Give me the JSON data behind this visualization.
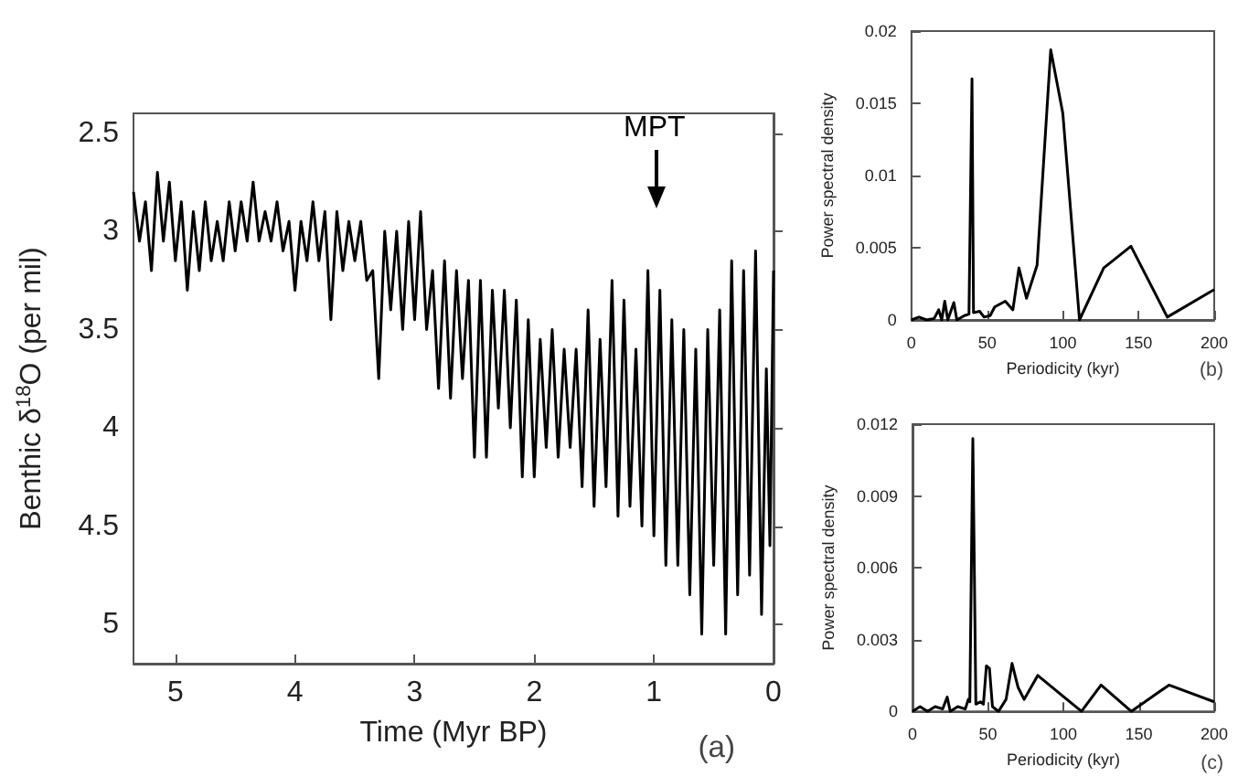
{
  "chart_data": [
    {
      "type": "line",
      "xlabel": "Time (Myr BP)",
      "ylabel": "Benthic δ$^{18}$O (per mil)",
      "xlim": [
        5.35,
        0
      ],
      "xticks": [
        5,
        4,
        3,
        2,
        1,
        0
      ],
      "ylim": [
        5.2,
        2.4
      ],
      "yticks": [
        2.5,
        3,
        3.5,
        4,
        4.5,
        5
      ],
      "annotations": [
        "MPT",
        "(a)"
      ],
      "series": [
        {
          "color": "#000000",
          "x": [
            5.35,
            5.3,
            5.25,
            5.2,
            5.15,
            5.1,
            5.05,
            5.0,
            4.95,
            4.9,
            4.85,
            4.8,
            4.75,
            4.7,
            4.65,
            4.6,
            4.55,
            4.5,
            4.45,
            4.4,
            4.35,
            4.3,
            4.25,
            4.2,
            4.15,
            4.1,
            4.05,
            4.0,
            3.95,
            3.9,
            3.85,
            3.8,
            3.75,
            3.7,
            3.65,
            3.6,
            3.55,
            3.5,
            3.45,
            3.4,
            3.35,
            3.3,
            3.25,
            3.2,
            3.15,
            3.1,
            3.05,
            3.0,
            2.95,
            2.9,
            2.85,
            2.8,
            2.75,
            2.7,
            2.65,
            2.6,
            2.55,
            2.5,
            2.45,
            2.4,
            2.35,
            2.3,
            2.25,
            2.2,
            2.15,
            2.1,
            2.05,
            2.0,
            1.95,
            1.9,
            1.85,
            1.8,
            1.75,
            1.7,
            1.65,
            1.6,
            1.55,
            1.5,
            1.45,
            1.4,
            1.35,
            1.3,
            1.25,
            1.2,
            1.15,
            1.1,
            1.05,
            1.0,
            0.95,
            0.9,
            0.85,
            0.8,
            0.75,
            0.7,
            0.65,
            0.6,
            0.55,
            0.5,
            0.45,
            0.4,
            0.35,
            0.3,
            0.25,
            0.2,
            0.15,
            0.1,
            0.06,
            0.03,
            0.0
          ],
          "values": [
            2.8,
            3.05,
            2.85,
            3.2,
            2.7,
            3.05,
            2.75,
            3.15,
            2.85,
            3.3,
            2.9,
            3.2,
            2.85,
            3.15,
            2.95,
            3.15,
            2.85,
            3.1,
            2.85,
            3.05,
            2.75,
            3.05,
            2.9,
            3.05,
            2.85,
            3.1,
            2.95,
            3.3,
            2.95,
            3.15,
            2.85,
            3.15,
            2.9,
            3.45,
            2.9,
            3.2,
            2.95,
            3.15,
            2.95,
            3.25,
            3.2,
            3.75,
            3.0,
            3.4,
            3.0,
            3.5,
            2.95,
            3.45,
            2.9,
            3.5,
            3.2,
            3.8,
            3.15,
            3.85,
            3.2,
            3.75,
            3.25,
            4.15,
            3.25,
            4.15,
            3.3,
            3.9,
            3.3,
            4.0,
            3.35,
            4.25,
            3.45,
            4.25,
            3.55,
            4.1,
            3.5,
            4.15,
            3.6,
            4.1,
            3.6,
            4.3,
            3.4,
            4.4,
            3.55,
            4.3,
            3.25,
            4.45,
            3.35,
            4.4,
            3.6,
            4.5,
            3.2,
            4.55,
            3.3,
            4.7,
            3.45,
            4.7,
            3.5,
            4.85,
            3.6,
            5.05,
            3.5,
            4.7,
            3.4,
            5.05,
            3.15,
            4.85,
            3.2,
            4.75,
            3.1,
            4.95,
            3.7,
            4.6,
            3.2
          ]
        }
      ]
    },
    {
      "type": "line",
      "xlabel": "Periodicity (kyr)",
      "ylabel": "Power spectral density",
      "xlim": [
        0,
        200
      ],
      "xticks": [
        0,
        50,
        100,
        150,
        200
      ],
      "ylim": [
        0,
        0.02
      ],
      "yticks": [
        0,
        0.005,
        0.01,
        0.015,
        0.02
      ],
      "annotations": [
        "(b)"
      ],
      "series": [
        {
          "color": "#000000",
          "x": [
            0,
            5,
            10,
            15,
            18,
            20,
            22,
            24,
            28,
            30,
            35,
            38,
            40,
            41,
            45,
            48,
            52,
            55,
            62,
            67,
            71,
            76,
            83,
            92,
            100,
            111,
            127,
            145,
            169,
            200
          ],
          "values": [
            0,
            0.0002,
            0,
            0.0001,
            0.0007,
            0,
            0.0013,
            0,
            0.0012,
            0,
            0.0003,
            0.0004,
            0.0167,
            0.0005,
            0.0006,
            0.0002,
            0.0003,
            0.0009,
            0.0013,
            0.0007,
            0.0036,
            0.0015,
            0.0038,
            0.0187,
            0.0143,
            0,
            0.0036,
            0.0051,
            0.0002,
            0.0021
          ]
        }
      ]
    },
    {
      "type": "line",
      "xlabel": "Periodicity (kyr)",
      "ylabel": "Power spectral density",
      "xlim": [
        0,
        200
      ],
      "xticks": [
        0,
        50,
        100,
        150,
        200
      ],
      "ylim": [
        0,
        0.012
      ],
      "yticks": [
        0,
        0.003,
        0.006,
        0.009,
        0.012
      ],
      "annotations": [
        "(c)"
      ],
      "series": [
        {
          "color": "#000000",
          "x": [
            0,
            5,
            10,
            15,
            20,
            23,
            25,
            30,
            35,
            37,
            38,
            40,
            42,
            45,
            47,
            49,
            51,
            53,
            57,
            62,
            66,
            70,
            74,
            83,
            112,
            125,
            145,
            170,
            200
          ],
          "values": [
            0,
            0.0002,
            0,
            0.0002,
            0.0001,
            0.0006,
            0,
            0.0002,
            0.0001,
            0.0005,
            0.0004,
            0.0114,
            0.0003,
            0.0004,
            0.0003,
            0.0019,
            0.0018,
            0.0002,
            0,
            0.0005,
            0.002,
            0.001,
            0.0005,
            0.0015,
            0,
            0.0011,
            0,
            0.0011,
            0.0004
          ]
        }
      ]
    }
  ]
}
